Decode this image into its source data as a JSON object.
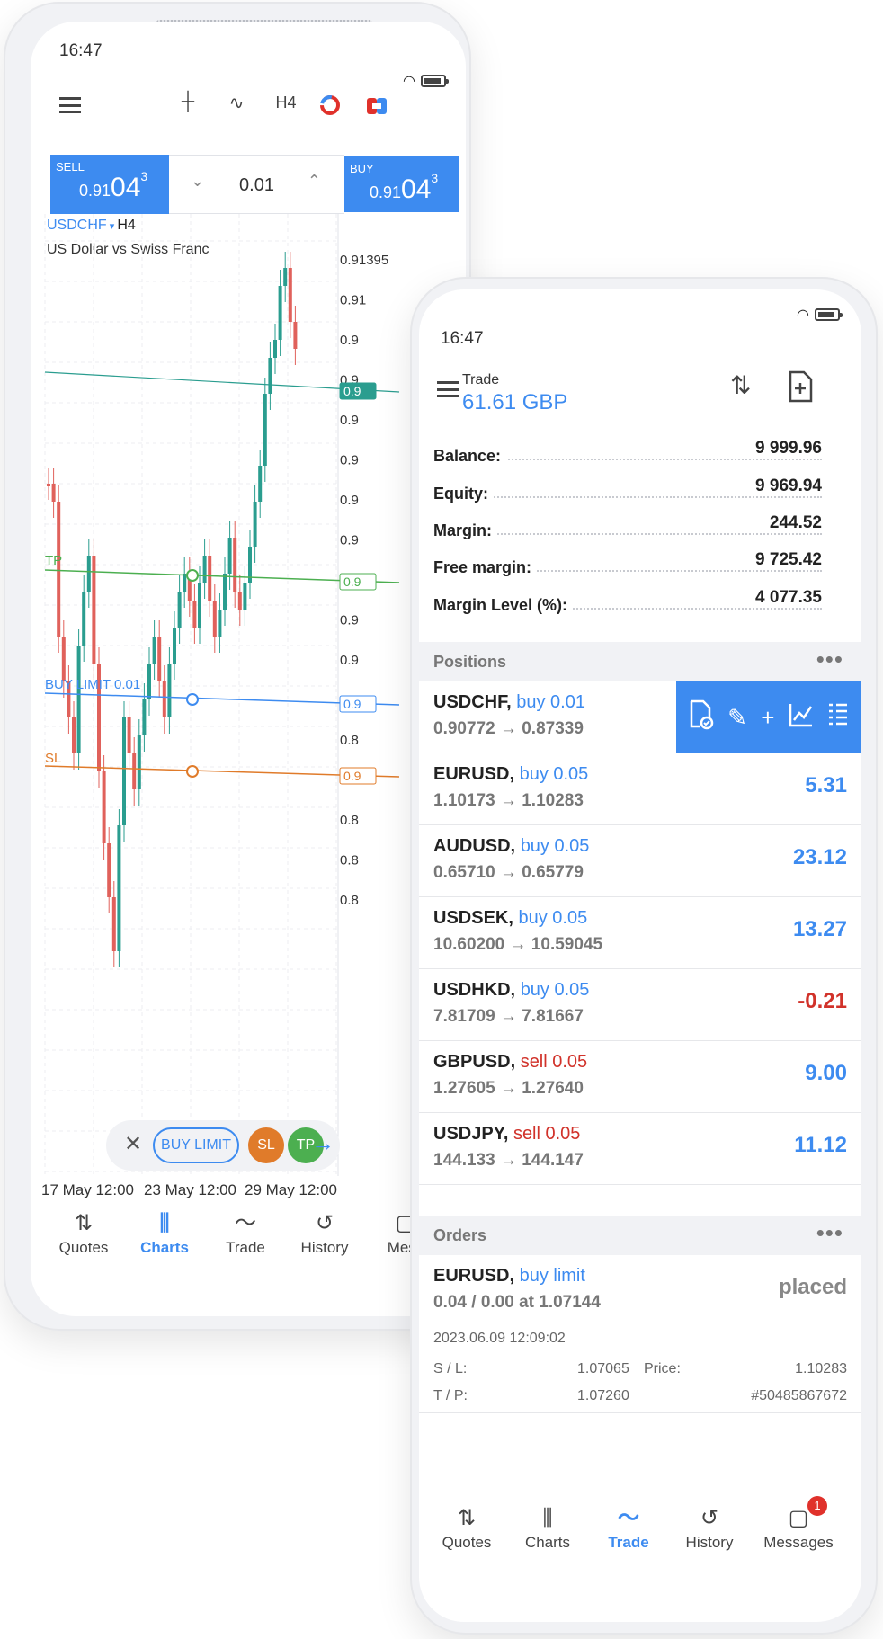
{
  "chart_screen": {
    "status_time": "16:47",
    "toolbar": {
      "timeframe": "H4"
    },
    "trade_panel": {
      "sell_label": "SELL",
      "sell_price_prefix": "0.91",
      "sell_price_big": "04",
      "sell_price_sup": "3",
      "lot": "0.01",
      "buy_label": "BUY",
      "buy_price_prefix": "0.91",
      "buy_price_big": "04",
      "buy_price_sup": "3"
    },
    "symbol": "USDCHF",
    "symbol_timeframe": "H4",
    "symbol_description": "US Dollar vs Swiss Franc",
    "price_axis_labels": [
      "0.91395",
      "0.91",
      "0.9",
      "0.9",
      "0.9",
      "0.9",
      "0.9",
      "0.9",
      "0.9",
      "0.9",
      "0.9",
      "0.9",
      "0.8",
      "0.8",
      "0.8",
      "0.8",
      "0.8"
    ],
    "line_labels": {
      "tp": "TP",
      "buy_limit": "BUY LIMIT 0.01",
      "sl": "SL"
    },
    "axis_tag_labels": {
      "current": "0.9",
      "tp": "0.9",
      "buy_limit": "0.9",
      "sl": "0.9"
    },
    "x_labels": [
      "17 May 12:00",
      "23 May 12:00",
      "29 May 12:00"
    ],
    "order_bar": {
      "close": "✕",
      "limit_label": "BUY LIMIT",
      "sl": "SL",
      "tp": "TP",
      "confirm": "→"
    },
    "nav": [
      {
        "label": "Quotes",
        "icon": "⇅"
      },
      {
        "label": "Charts",
        "icon": "⫼"
      },
      {
        "label": "Trade",
        "icon": "〜"
      },
      {
        "label": "History",
        "icon": "↺"
      },
      {
        "label": "Mess",
        "icon": "▢"
      }
    ],
    "colors": {
      "accent": "#3d8bf0",
      "bull": "#2a9d8f",
      "bear": "#e0615b",
      "tp": "#4caf50",
      "sl": "#e07b2a"
    }
  },
  "trade_screen": {
    "status_time": "16:47",
    "title_label": "Trade",
    "title_value": "61.61 GBP",
    "account": [
      {
        "label": "Balance:",
        "value": "9 999.96"
      },
      {
        "label": "Equity:",
        "value": "9 969.94"
      },
      {
        "label": "Margin:",
        "value": "244.52"
      },
      {
        "label": "Free margin:",
        "value": "9 725.42"
      },
      {
        "label": "Margin Level (%):",
        "value": "4 077.35"
      }
    ],
    "positions_header": "Positions",
    "more": "•••",
    "positions": [
      {
        "symbol": "USDCHF,",
        "side": "buy 0.01",
        "side_type": "buy",
        "prices": "0.90772 → 0.87339",
        "profit": ""
      },
      {
        "symbol": "EURUSD,",
        "side": "buy 0.05",
        "side_type": "buy",
        "prices": "1.10173 → 1.10283",
        "profit": "5.31"
      },
      {
        "symbol": "AUDUSD,",
        "side": "buy 0.05",
        "side_type": "buy",
        "prices": "0.65710 → 0.65779",
        "profit": "23.12"
      },
      {
        "symbol": "USDSEK,",
        "side": "buy 0.05",
        "side_type": "buy",
        "prices": "10.60200 → 10.59045",
        "profit": "13.27"
      },
      {
        "symbol": "USDHKD,",
        "side": "buy 0.05",
        "side_type": "buy",
        "prices": "7.81709 → 7.81667",
        "profit": "-0.21"
      },
      {
        "symbol": "GBPUSD,",
        "side": "sell 0.05",
        "side_type": "sell",
        "prices": "1.27605 → 1.27640",
        "profit": "9.00"
      },
      {
        "symbol": "USDJPY,",
        "side": "sell 0.05",
        "side_type": "sell",
        "prices": "144.133 → 144.147",
        "profit": "11.12"
      }
    ],
    "orders_header": "Orders",
    "order": {
      "symbol": "EURUSD,",
      "side": "buy limit",
      "volume": "0.04 / 0.00 at 1.07144",
      "status": "placed",
      "date": "2023.06.09 12:09:02",
      "sl_label": "S / L:",
      "sl_value": "1.07065",
      "price_label": "Price:",
      "price_value": "1.10283",
      "tp_label": "T / P:",
      "tp_value": "1.07260",
      "ticket": "#50485867672"
    },
    "nav": [
      {
        "label": "Quotes",
        "icon": "⇅"
      },
      {
        "label": "Charts",
        "icon": "⫼"
      },
      {
        "label": "Trade",
        "icon": "〜"
      },
      {
        "label": "History",
        "icon": "↺"
      },
      {
        "label": "Messages",
        "icon": "▢"
      }
    ],
    "messages_badge": "1"
  }
}
